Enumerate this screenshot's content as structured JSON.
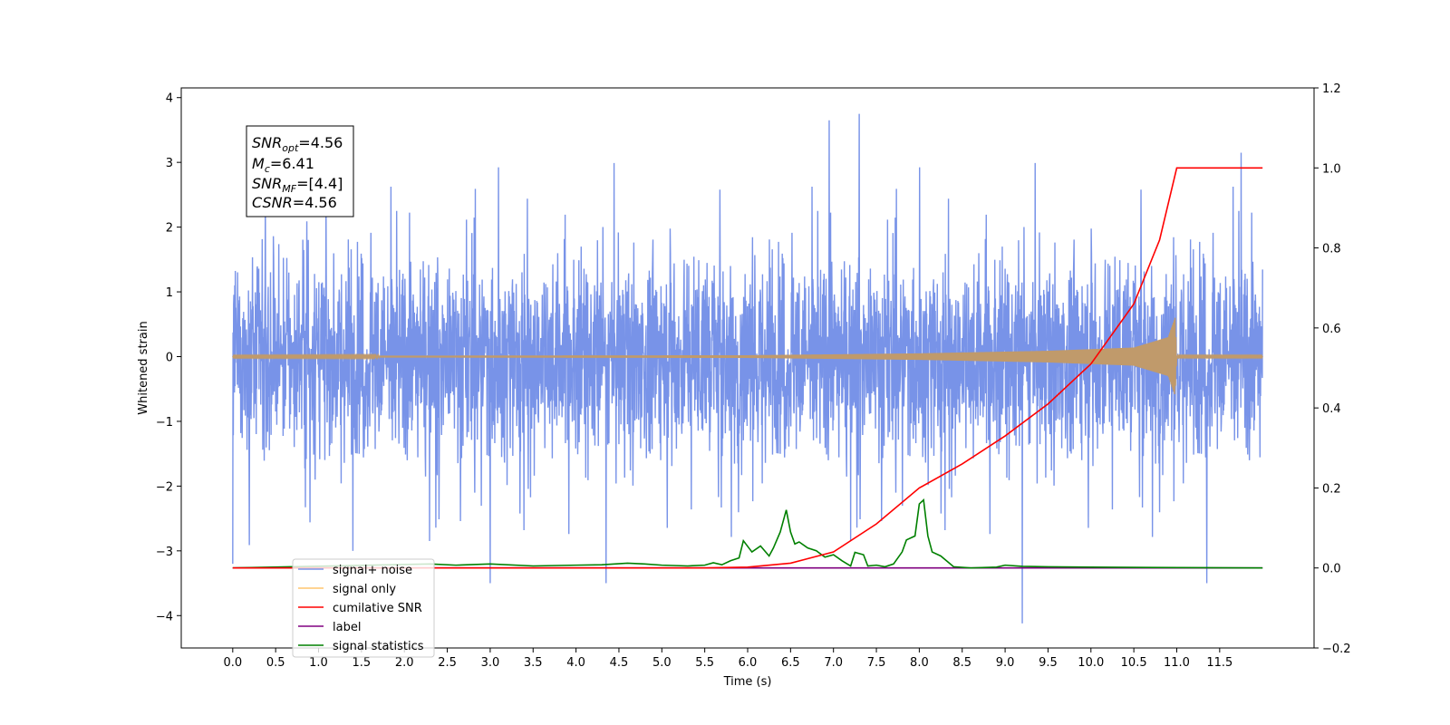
{
  "chart_data": {
    "type": "line",
    "xlabel": "Time (s)",
    "ylabel_left": "Whitened strain",
    "ylabel_right": "",
    "xlim": [
      -0.6,
      12.6
    ],
    "ylim_left": [
      -4.5,
      4.15
    ],
    "ylim_right": [
      -0.2,
      1.2
    ],
    "x_ticks": [
      "0.0",
      "0.5",
      "1.0",
      "1.5",
      "2.0",
      "2.5",
      "3.0",
      "3.5",
      "4.0",
      "4.5",
      "5.0",
      "5.5",
      "6.0",
      "6.5",
      "7.0",
      "7.5",
      "8.0",
      "8.5",
      "9.0",
      "9.5",
      "10.0",
      "10.5",
      "11.0",
      "11.5"
    ],
    "y_ticks_left": [
      "4",
      "3",
      "2",
      "1",
      "0",
      "−1",
      "−2",
      "−3",
      "−4"
    ],
    "y_ticks_right": [
      "1.2",
      "1.0",
      "0.8",
      "0.6",
      "0.4",
      "0.2",
      "0.0",
      "−0.2"
    ],
    "grid": false,
    "legend_position": "lower-left",
    "annotation": {
      "snr_opt_base": "SNR",
      "snr_opt_sub": "opt",
      "snr_opt_value": "=4.56",
      "mc_base": "M",
      "mc_sub": "c",
      "mc_value": "=6.41",
      "snr_mf_base": "SNR",
      "snr_mf_sub": "MF",
      "snr_mf_value": "=[4.4]",
      "csnr_base": "CSNR",
      "csnr_value": "=4.56"
    },
    "series": [
      {
        "name": "signal+ noise",
        "axis": "left",
        "color": "#7893e8",
        "description_values": {
          "t_start": 0.0,
          "t_end": 12.0,
          "typical_amplitude": 1.6,
          "max": 3.75,
          "min": -4.12
        },
        "spikes": [
          [
            0.0,
            2.3
          ],
          [
            0.0,
            -3.2
          ],
          [
            1.4,
            -3.0
          ],
          [
            3.0,
            -3.5
          ],
          [
            4.35,
            -3.5
          ],
          [
            6.95,
            3.65
          ],
          [
            7.3,
            3.75
          ],
          [
            9.2,
            -4.12
          ],
          [
            11.35,
            -3.5
          ],
          [
            11.75,
            3.15
          ]
        ]
      },
      {
        "name": "signal only",
        "axis": "left",
        "color": "#c09a6b",
        "envelope": [
          [
            0.0,
            0.01
          ],
          [
            6.0,
            0.02
          ],
          [
            8.0,
            0.05
          ],
          [
            9.5,
            0.09
          ],
          [
            10.5,
            0.14
          ],
          [
            10.9,
            0.3
          ],
          [
            10.98,
            0.6
          ],
          [
            11.0,
            0.0
          ],
          [
            12.0,
            0.0
          ]
        ]
      },
      {
        "name": "cumilative SNR",
        "axis": "right",
        "color": "#ff0000",
        "x": [
          0.0,
          5.5,
          6.0,
          6.5,
          7.0,
          7.5,
          8.0,
          8.5,
          9.0,
          9.5,
          10.0,
          10.5,
          10.8,
          11.0,
          12.0
        ],
        "y": [
          0.0,
          0.0,
          0.002,
          0.012,
          0.04,
          0.11,
          0.2,
          0.26,
          0.33,
          0.41,
          0.51,
          0.66,
          0.82,
          1.0,
          1.0
        ]
      },
      {
        "name": "label",
        "axis": "right",
        "color": "#800080",
        "x": [
          0.0,
          7.99,
          7.99,
          8.0,
          8.0,
          12.0
        ],
        "y": [
          0.0,
          0.0,
          0.0,
          0.0,
          0.0,
          0.0
        ]
      },
      {
        "name": "signal statistics",
        "axis": "right",
        "color": "#008000",
        "x": [
          0.0,
          2.3,
          2.6,
          3.0,
          3.5,
          4.0,
          4.3,
          4.6,
          4.8,
          5.0,
          5.3,
          5.5,
          5.6,
          5.7,
          5.8,
          5.9,
          5.95,
          6.05,
          6.15,
          6.25,
          6.3,
          6.38,
          6.45,
          6.5,
          6.55,
          6.6,
          6.7,
          6.8,
          6.9,
          7.0,
          7.1,
          7.2,
          7.25,
          7.35,
          7.4,
          7.5,
          7.6,
          7.7,
          7.8,
          7.85,
          7.95,
          8.0,
          8.05,
          8.1,
          8.15,
          8.25,
          8.4,
          8.6,
          8.9,
          9.0,
          9.2,
          9.5,
          10.0,
          12.0
        ],
        "y": [
          0.0,
          0.01,
          0.007,
          0.01,
          0.005,
          0.007,
          0.008,
          0.012,
          0.01,
          0.007,
          0.005,
          0.007,
          0.013,
          0.008,
          0.018,
          0.025,
          0.068,
          0.04,
          0.055,
          0.03,
          0.05,
          0.09,
          0.145,
          0.09,
          0.06,
          0.065,
          0.05,
          0.043,
          0.027,
          0.033,
          0.018,
          0.005,
          0.039,
          0.033,
          0.005,
          0.007,
          0.003,
          0.01,
          0.04,
          0.07,
          0.08,
          0.16,
          0.17,
          0.08,
          0.04,
          0.03,
          0.003,
          0.0,
          0.002,
          0.007,
          0.004,
          0.003,
          0.002,
          0.0
        ]
      }
    ]
  }
}
